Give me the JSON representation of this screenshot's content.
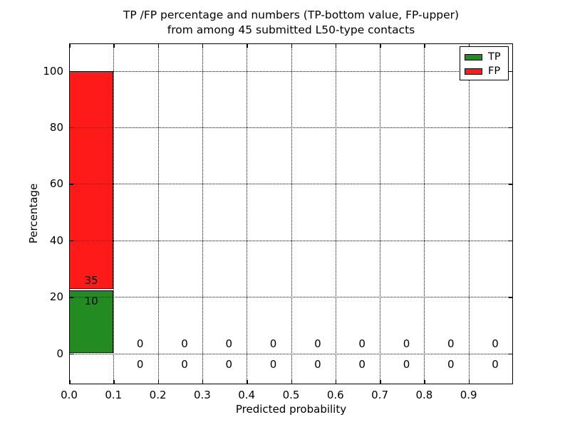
{
  "chart_data": {
    "type": "bar",
    "stacked": true,
    "title_line1": "TP /FP percentage and numbers (TP-bottom value, FP-upper)",
    "title_line2": "from among 45 submitted L50-type contacts",
    "xlabel": "Predicted probability",
    "ylabel": "Percentage",
    "xlim": [
      0.0,
      1.0
    ],
    "ylim": [
      -11,
      110
    ],
    "xtick_labels": [
      "0.0",
      "0.1",
      "0.2",
      "0.3",
      "0.4",
      "0.5",
      "0.6",
      "0.7",
      "0.8",
      "0.9"
    ],
    "ytick_values": [
      0,
      20,
      40,
      60,
      80,
      100
    ],
    "grid_style": "dotted",
    "total_submitted": 45,
    "bin_width": 0.1,
    "bin_starts": [
      0.0,
      0.1,
      0.2,
      0.3,
      0.4,
      0.5,
      0.6,
      0.7,
      0.8,
      0.9
    ],
    "series": [
      {
        "name": "TP",
        "color": "#228b22",
        "counts": [
          10,
          0,
          0,
          0,
          0,
          0,
          0,
          0,
          0,
          0
        ],
        "percentages": [
          22.2,
          0,
          0,
          0,
          0,
          0,
          0,
          0,
          0,
          0
        ]
      },
      {
        "name": "FP",
        "color": "#ff1a1a",
        "counts": [
          35,
          0,
          0,
          0,
          0,
          0,
          0,
          0,
          0,
          0
        ],
        "percentages": [
          77.8,
          0,
          0,
          0,
          0,
          0,
          0,
          0,
          0,
          0
        ]
      }
    ],
    "legend": {
      "position": "upper right",
      "entries": [
        {
          "label": "TP",
          "color": "#228b22"
        },
        {
          "label": "FP",
          "color": "#ff1a1a"
        }
      ]
    }
  },
  "colors": {
    "background": "#ffffff",
    "text": "#000000",
    "grid": "#000000",
    "tp": "#228b22",
    "fp": "#ff1a1a"
  }
}
